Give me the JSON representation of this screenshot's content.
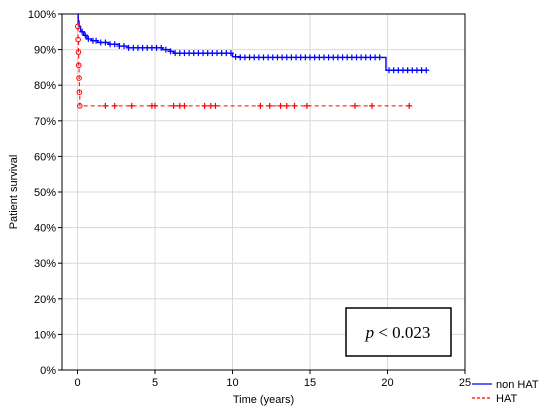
{
  "chart_data": {
    "type": "line",
    "title": "",
    "xlabel": "Time (years)",
    "ylabel": "Patient survival",
    "xlim": [
      -1,
      25
    ],
    "ylim": [
      0,
      100
    ],
    "x_ticks": [
      0,
      5,
      10,
      15,
      20,
      25
    ],
    "x_tick_labels": [
      "0",
      "5",
      "10",
      "15",
      "20",
      "25"
    ],
    "y_ticks": [
      0,
      10,
      20,
      30,
      40,
      50,
      60,
      70,
      80,
      90,
      100
    ],
    "y_tick_labels": [
      "0%",
      "10%",
      "20%",
      "30%",
      "40%",
      "50%",
      "60%",
      "70%",
      "80%",
      "90%",
      "100%"
    ],
    "grid": true,
    "legend_position": "bottom-right outside",
    "annotation": {
      "italic": "p",
      "rest": " < 0.023"
    },
    "series": [
      {
        "name": "non HAT",
        "color": "#0000ff",
        "style": "solid step",
        "points": [
          [
            0,
            100
          ],
          [
            0.05,
            98
          ],
          [
            0.1,
            96.5
          ],
          [
            0.2,
            95
          ],
          [
            0.4,
            94
          ],
          [
            0.6,
            93
          ],
          [
            0.9,
            92.5
          ],
          [
            1.3,
            92
          ],
          [
            2.0,
            91.5
          ],
          [
            2.7,
            91
          ],
          [
            3.2,
            90.5
          ],
          [
            5.5,
            90
          ],
          [
            6.0,
            89.5
          ],
          [
            6.2,
            89
          ],
          [
            10.0,
            88
          ],
          [
            10.5,
            87.8
          ],
          [
            19.8,
            87.8
          ],
          [
            19.9,
            84.2
          ],
          [
            22.5,
            84.2
          ]
        ],
        "censor_x": [
          0.3,
          0.5,
          0.7,
          1.0,
          1.2,
          1.5,
          1.8,
          2.1,
          2.4,
          2.7,
          3.0,
          3.3,
          3.6,
          3.9,
          4.2,
          4.5,
          4.8,
          5.1,
          5.4,
          5.7,
          6.0,
          6.3,
          6.6,
          6.9,
          7.2,
          7.5,
          7.8,
          8.1,
          8.4,
          8.7,
          9.0,
          9.3,
          9.6,
          9.9,
          10.2,
          10.5,
          10.8,
          11.1,
          11.4,
          11.7,
          12.0,
          12.3,
          12.6,
          12.9,
          13.2,
          13.5,
          13.8,
          14.1,
          14.4,
          14.7,
          15.0,
          15.3,
          15.6,
          15.9,
          16.2,
          16.5,
          16.8,
          17.1,
          17.4,
          17.7,
          18.0,
          18.3,
          18.6,
          18.9,
          19.2,
          19.5,
          20.1,
          20.4,
          20.7,
          21.0,
          21.3,
          21.6,
          21.9,
          22.2,
          22.5
        ]
      },
      {
        "name": "HAT",
        "color": "#ff0000",
        "style": "dashed step",
        "points": [
          [
            0,
            100
          ],
          [
            0.02,
            96.5
          ],
          [
            0.04,
            92.8
          ],
          [
            0.06,
            89.3
          ],
          [
            0.08,
            85.6
          ],
          [
            0.1,
            82
          ],
          [
            0.12,
            78
          ],
          [
            0.15,
            74.2
          ],
          [
            21.4,
            74.2
          ]
        ],
        "event_markers_x": [
          0.02,
          0.04,
          0.06,
          0.08,
          0.1,
          0.12,
          0.15
        ],
        "censor_x": [
          1.8,
          2.4,
          3.5,
          4.8,
          5.0,
          6.2,
          6.6,
          6.9,
          8.2,
          8.6,
          8.9,
          11.8,
          12.4,
          13.1,
          13.5,
          14.0,
          14.8,
          17.9,
          19.0,
          21.4
        ]
      }
    ]
  }
}
